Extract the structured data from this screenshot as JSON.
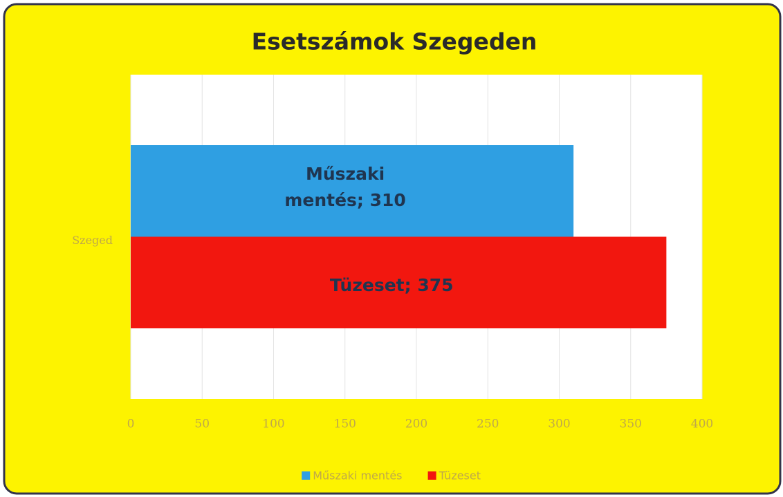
{
  "chart_data": {
    "type": "barh",
    "title": "Esetszámok Szegeden",
    "categories": [
      "Szeged"
    ],
    "series": [
      {
        "name": "Műszaki mentés",
        "color": "#2f9fe2",
        "values": [
          310
        ],
        "value_labels": [
          "Műszaki mentés; 310"
        ]
      },
      {
        "name": "Tüzeset",
        "color": "#f2170f",
        "values": [
          375
        ],
        "value_labels": [
          "Tüzeset; 375"
        ]
      }
    ],
    "xlim": [
      0,
      400
    ],
    "xticks": [
      0,
      50,
      100,
      150,
      200,
      250,
      300,
      350,
      400
    ],
    "grid": true,
    "legend": "bottom"
  }
}
